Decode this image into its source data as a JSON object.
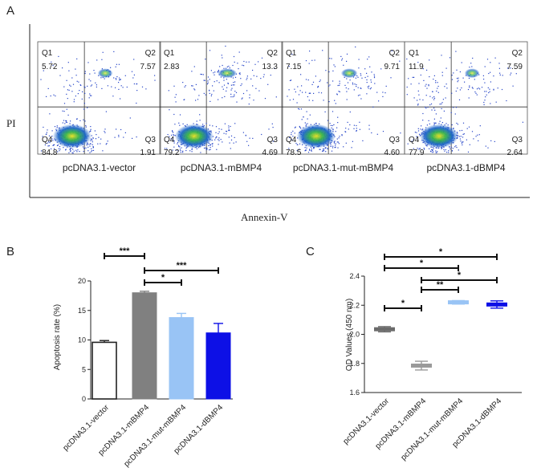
{
  "panels": {
    "a": "A",
    "b": "B",
    "c": "C"
  },
  "flow": {
    "y_axis_label": "PI",
    "x_axis_label": "Annexin-V",
    "quadrant_names": [
      "Q1",
      "Q2",
      "Q4",
      "Q3"
    ],
    "plots": [
      {
        "caption": "pcDNA3.1-vector",
        "q1": "5.72",
        "q2": "7.57",
        "q3": "1.91",
        "q4": "84.8"
      },
      {
        "caption": "pcDNA3.1-mBMP4",
        "q1": "2.83",
        "q2": "13.3",
        "q3": "4.69",
        "q4": "79.2"
      },
      {
        "caption": "pcDNA3.1-mut-mBMP4",
        "q1": "7.15",
        "q2": "9.71",
        "q3": "4.60",
        "q4": "78.5"
      },
      {
        "caption": "pcDNA3.1-dBMP4",
        "q1": "11.9",
        "q2": "7.59",
        "q3": "2.64",
        "q4": "77.9"
      }
    ]
  },
  "colors": {
    "white": "#ffffff",
    "grey": "#808080",
    "lightblue": "#99c4f5",
    "blue": "#0d10e6",
    "axis": "#222222"
  },
  "chart_data": [
    {
      "type": "bar",
      "ylabel": "Apoptosis rate (%)",
      "ylim": [
        0,
        20
      ],
      "yticks": [
        "0",
        "5",
        "10",
        "15",
        "20"
      ],
      "categories": [
        "pcDNA3.1-vector",
        "pcDNA3.1-mBMP4",
        "pcDNA3.1-mut-mBMP4",
        "pcDNA3.1-dBMP4"
      ],
      "values": [
        9.6,
        18.0,
        13.8,
        11.2
      ],
      "errors": [
        0.3,
        0.25,
        0.7,
        1.6
      ],
      "significance": [
        {
          "from": 0,
          "to": 1,
          "label": "***"
        },
        {
          "from": 1,
          "to": 3,
          "label": "***"
        },
        {
          "from": 1,
          "to": 2,
          "label": "*"
        }
      ]
    },
    {
      "type": "scatter",
      "ylabel": "OD Values (450 nm)",
      "ylim": [
        1.6,
        2.4
      ],
      "yticks": [
        "1.6",
        "1.8",
        "2.0",
        "2.2",
        "2.4"
      ],
      "categories": [
        "pcDNA3.1-vector",
        "pcDNA3.1-mBMP4",
        "pcDNA3.1-mut-mBMP4",
        "pcDNA3.1-dBMP4"
      ],
      "values": [
        2.035,
        1.785,
        2.22,
        2.205
      ],
      "errors": [
        0.018,
        0.03,
        0.012,
        0.025
      ],
      "significance": [
        {
          "from": 0,
          "to": 3,
          "label": "*"
        },
        {
          "from": 0,
          "to": 2,
          "label": "*"
        },
        {
          "from": 1,
          "to": 3,
          "label": "*"
        },
        {
          "from": 1,
          "to": 2,
          "label": "**"
        },
        {
          "from": 0,
          "to": 1,
          "label": "*"
        }
      ]
    }
  ]
}
